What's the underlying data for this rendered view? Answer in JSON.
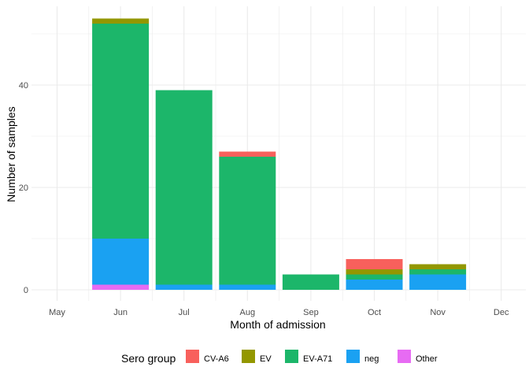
{
  "chart_data": {
    "type": "bar",
    "stacked": true,
    "title": "",
    "xlabel": "Month of admission",
    "ylabel": "Number of samples",
    "categories": [
      "May",
      "Jun",
      "Jul",
      "Aug",
      "Sep",
      "Oct",
      "Nov",
      "Dec"
    ],
    "ylim": [
      0,
      55
    ],
    "yticks": [
      0,
      20,
      40
    ],
    "grid": true,
    "legend": {
      "title": "Sero group",
      "placement": "bottom"
    },
    "series": [
      {
        "name": "Other",
        "color": "#E76BF3",
        "values": [
          0,
          1,
          0,
          0,
          0,
          0,
          0,
          0
        ]
      },
      {
        "name": "neg",
        "color": "#1AA1F2",
        "values": [
          0,
          9,
          1,
          1,
          0,
          2,
          3,
          0
        ]
      },
      {
        "name": "EV-A71",
        "color": "#1CB66A",
        "values": [
          0,
          42,
          38,
          25,
          3,
          1,
          1,
          0
        ]
      },
      {
        "name": "EV",
        "color": "#939700",
        "values": [
          0,
          1,
          0,
          0,
          0,
          1,
          1,
          0
        ]
      },
      {
        "name": "CV-A6",
        "color": "#F8605C",
        "values": [
          0,
          0,
          0,
          1,
          0,
          2,
          0,
          0
        ]
      }
    ],
    "legend_order": [
      "CV-A6",
      "EV",
      "EV-A71",
      "neg",
      "Other"
    ]
  }
}
